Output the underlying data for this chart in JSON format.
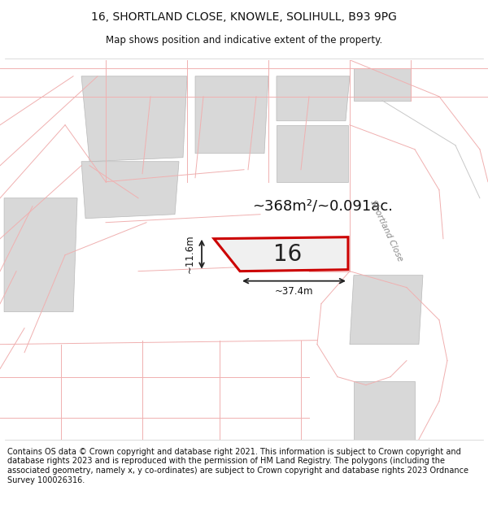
{
  "title_line1": "16, SHORTLAND CLOSE, KNOWLE, SOLIHULL, B93 9PG",
  "title_line2": "Map shows position and indicative extent of the property.",
  "footer_text": "Contains OS data © Crown copyright and database right 2021. This information is subject to Crown copyright and database rights 2023 and is reproduced with the permission of HM Land Registry. The polygons (including the associated geometry, namely x, y co-ordinates) are subject to Crown copyright and database rights 2023 Ordnance Survey 100026316.",
  "area_text": "~368m²/~0.091ac.",
  "plot_number": "16",
  "dim_width": "~37.4m",
  "dim_height": "~11.6m",
  "map_bg": "#ffffff",
  "plot_fill": "#f0f0f0",
  "plot_edge": "#cc0000",
  "building_fill": "#d8d8d8",
  "building_edge": "#b8b8b8",
  "road_line_color": "#f0b0b0",
  "boundary_line_color": "#e08080",
  "street_label": "Shortland Close",
  "title_fontsize": 10,
  "subtitle_fontsize": 8.5,
  "footer_fontsize": 7.0,
  "area_fontsize": 13,
  "plot_num_fontsize": 20,
  "dim_fontsize": 8.5
}
